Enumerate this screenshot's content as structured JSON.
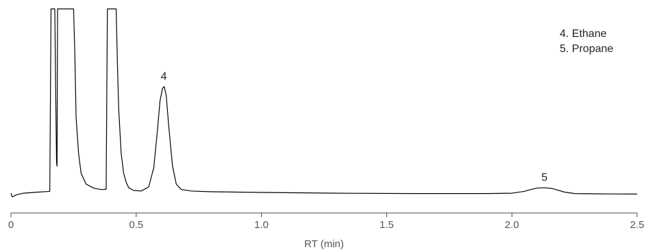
{
  "chart_data": {
    "type": "line",
    "xlabel": "RT (min)",
    "ylabel": "",
    "title": "",
    "xlim": [
      0,
      2.5
    ],
    "x_ticks": [
      0,
      0.5,
      1.0,
      1.5,
      2.0,
      2.5
    ],
    "x_tick_labels": [
      "0",
      "0.5",
      "1.0",
      "1.5",
      "2.0",
      "2.5"
    ],
    "grid": false,
    "legend_position": "top-right",
    "legend": [
      "4. Ethane",
      "5. Propane"
    ],
    "peak_labels": [
      {
        "label": "4",
        "x": 0.61
      },
      {
        "label": "5",
        "x": 2.13
      }
    ],
    "series": [
      {
        "color": "#000000",
        "x": [
          0.0,
          0.005,
          0.01,
          0.02,
          0.05,
          0.1,
          0.155,
          0.16,
          0.162,
          0.175,
          0.178,
          0.182,
          0.184,
          0.186,
          0.19,
          0.193,
          0.25,
          0.255,
          0.26,
          0.27,
          0.28,
          0.3,
          0.33,
          0.36,
          0.38,
          0.385,
          0.39,
          0.42,
          0.425,
          0.43,
          0.44,
          0.45,
          0.46,
          0.47,
          0.49,
          0.52,
          0.55,
          0.57,
          0.585,
          0.595,
          0.605,
          0.612,
          0.62,
          0.63,
          0.645,
          0.66,
          0.68,
          0.72,
          0.8,
          1.0,
          1.3,
          1.6,
          1.9,
          2.0,
          2.05,
          2.08,
          2.1,
          2.13,
          2.16,
          2.18,
          2.21,
          2.25,
          2.35,
          2.5
        ],
        "y": [
          0.03,
          0.01,
          0.012,
          0.02,
          0.03,
          0.035,
          0.04,
          1.05,
          1.05,
          1.05,
          0.66,
          0.2,
          0.18,
          1.05,
          1.05,
          1.05,
          1.05,
          0.8,
          0.45,
          0.25,
          0.14,
          0.08,
          0.058,
          0.05,
          0.052,
          1.05,
          1.05,
          1.05,
          0.75,
          0.5,
          0.25,
          0.14,
          0.09,
          0.06,
          0.045,
          0.042,
          0.065,
          0.17,
          0.38,
          0.54,
          0.61,
          0.62,
          0.57,
          0.4,
          0.18,
          0.08,
          0.05,
          0.042,
          0.038,
          0.034,
          0.03,
          0.028,
          0.028,
          0.03,
          0.04,
          0.052,
          0.058,
          0.06,
          0.056,
          0.048,
          0.036,
          0.028,
          0.026,
          0.025
        ]
      }
    ]
  }
}
